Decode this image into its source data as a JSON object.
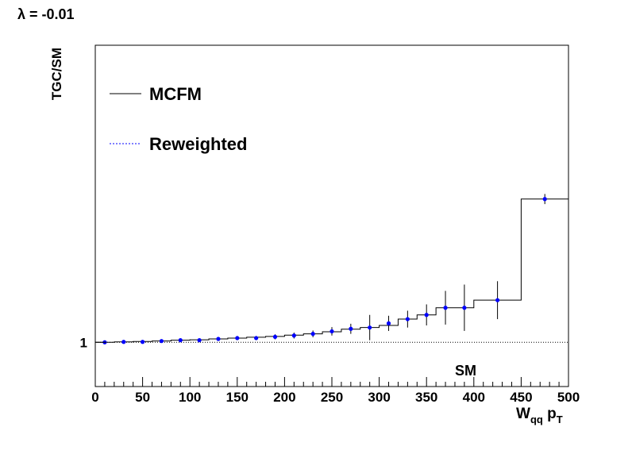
{
  "chart_data": {
    "type": "line",
    "title": "λ = -0.01",
    "ylabel": "TGC/SM",
    "xlabel_main": "W",
    "xlabel_sub1": "qq",
    "xlabel_mid": " p",
    "xlabel_sub2": "T",
    "xlim": [
      0,
      500
    ],
    "ylim": [
      0.895,
      1.705
    ],
    "x_ticks": [
      "0",
      "50",
      "100",
      "150",
      "200",
      "250",
      "300",
      "350",
      "400",
      "450",
      "500"
    ],
    "y_tick_labels": [
      {
        "value": 1.0,
        "label": "1"
      }
    ],
    "reference_label": "SM",
    "legend": {
      "position": "top-left",
      "entries": [
        "MCFM",
        "Reweighted"
      ]
    },
    "colors": {
      "mcfm": "#000000",
      "reweighted": "#0000ff",
      "reference": "#000000"
    },
    "reference_line": 1.0,
    "series": [
      {
        "name": "MCFM",
        "style": "step",
        "bin_edges": [
          0,
          20,
          40,
          60,
          80,
          100,
          120,
          140,
          160,
          180,
          200,
          220,
          240,
          260,
          280,
          300,
          320,
          340,
          360,
          380,
          400,
          450,
          500
        ],
        "values": [
          1.0,
          1.001,
          1.002,
          1.003,
          1.005,
          1.006,
          1.008,
          1.01,
          1.012,
          1.014,
          1.017,
          1.02,
          1.025,
          1.031,
          1.035,
          1.04,
          1.055,
          1.065,
          1.082,
          1.082,
          1.1,
          1.34
        ]
      },
      {
        "name": "Reweighted",
        "style": "points-with-errors",
        "x": [
          10,
          30,
          50,
          70,
          90,
          110,
          130,
          150,
          170,
          190,
          210,
          230,
          250,
          270,
          290,
          310,
          330,
          350,
          370,
          390,
          425,
          475
        ],
        "y": [
          1.0,
          1.001,
          1.001,
          1.003,
          1.005,
          1.005,
          1.008,
          1.01,
          1.01,
          1.013,
          1.016,
          1.02,
          1.026,
          1.032,
          1.035,
          1.045,
          1.055,
          1.065,
          1.082,
          1.082,
          1.1,
          1.34
        ],
        "yerr": [
          0.002,
          0.002,
          0.002,
          0.002,
          0.003,
          0.003,
          0.004,
          0.005,
          0.005,
          0.006,
          0.007,
          0.008,
          0.01,
          0.012,
          0.03,
          0.018,
          0.02,
          0.025,
          0.04,
          0.055,
          0.045,
          0.012
        ]
      }
    ]
  }
}
